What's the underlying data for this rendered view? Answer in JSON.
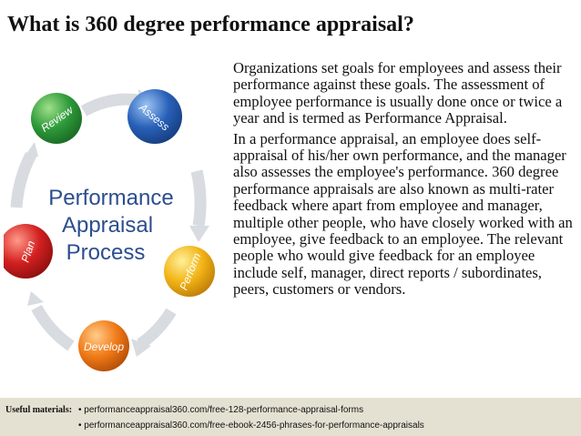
{
  "title": "What is 360 degree performance appraisal?",
  "diagram": {
    "center_lines": [
      "Performance",
      "Appraisal",
      "Process"
    ],
    "stages": [
      "Review",
      "Assess",
      "Perform",
      "Develop",
      "Plan"
    ],
    "colors": {
      "review": "#2e9a3a",
      "assess": "#2860b8",
      "perform": "#f2b416",
      "develop": "#f07a18",
      "plan": "#d32020",
      "arrow": "#d8dbe0",
      "center_text": "#2c4e8e"
    }
  },
  "paragraphs": [
    "Organizations set goals for employees and assess their performance against these goals. The assessment of employee performance is usually done once or twice a year and is termed as Performance Appraisal.",
    "In a performance appraisal, an employee does self-appraisal of his/her own performance, and the manager also assesses the employee's performance. 360 degree performance appraisals are also known as multi-rater feedback where apart from employee and manager, multiple other people, who have closely worked with an employee, give feedback to an employee. The relevant people who would give feedback for an employee include self, manager, direct reports / subordinates, peers, customers or vendors."
  ],
  "footer": {
    "label": "Useful materials",
    "links": [
      "• performanceappraisal360.com/free-128-performance-appraisal-forms",
      "• performanceappraisal360.com/free-ebook-2456-phrases-for-performance-appraisals"
    ]
  }
}
